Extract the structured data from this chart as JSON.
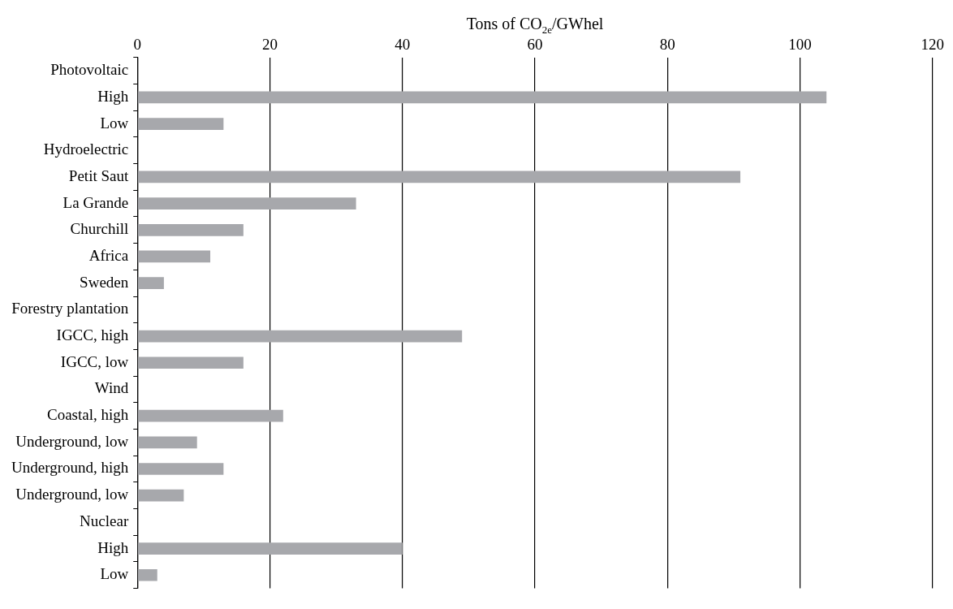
{
  "chart_data": {
    "type": "bar",
    "orientation": "horizontal",
    "xlabel": "Tons of CO$_{2e}$/GWhel",
    "categories": [
      "Photovoltaic",
      "High",
      "Low",
      "Hydroelectric",
      "Petit Saut",
      "La Grande",
      "Churchill",
      "Africa",
      "Sweden",
      "Forestry plantation",
      "IGCC, high",
      "IGCC, low",
      "Wind",
      "Coastal, high",
      "Underground, low",
      "Underground, high",
      "Underground, low",
      "Nuclear",
      "High",
      "Low"
    ],
    "values": [
      null,
      104,
      13,
      null,
      91,
      33,
      16,
      11,
      4,
      null,
      49,
      16,
      null,
      22,
      9,
      13,
      7,
      null,
      40,
      3
    ],
    "color": "#a7a8ac",
    "xlim": [
      0,
      120
    ],
    "xticks": [
      0,
      20,
      40,
      60,
      80,
      100,
      120
    ],
    "grid": "x"
  }
}
